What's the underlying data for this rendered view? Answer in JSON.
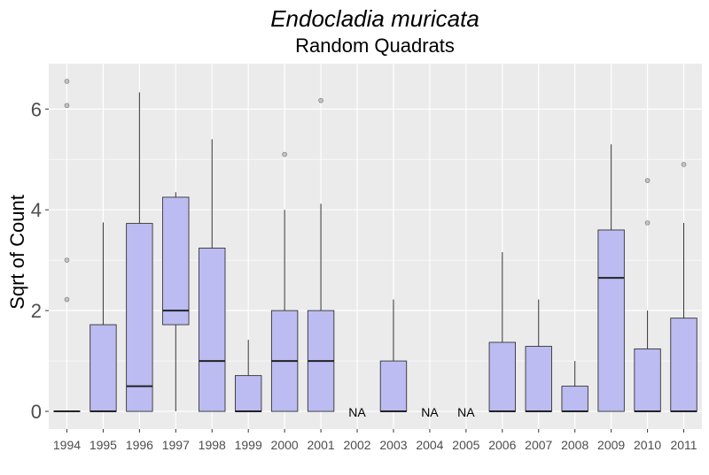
{
  "chart_data": {
    "type": "box",
    "title": "Endocladia muricata",
    "subtitle": "Random Quadrats",
    "xlabel": "",
    "ylabel": "Sqrt of Count",
    "ylim": [
      -0.35,
      6.9
    ],
    "yticks": [
      0,
      2,
      4,
      6
    ],
    "grid": true,
    "colors": {
      "box_fill": "#bcbcf2",
      "box_stroke": "#333333",
      "panel": "#ebebeb",
      "grid": "#ffffff",
      "outlier": "#999999"
    },
    "na_label": "NA",
    "boxes": [
      {
        "year": "1994",
        "min": 0,
        "q1": 0,
        "median": 0,
        "q3": 0,
        "max": 0,
        "outliers": [
          6.55,
          6.07,
          3.0,
          2.22
        ]
      },
      {
        "year": "1995",
        "min": 0,
        "q1": 0,
        "median": 0,
        "q3": 1.72,
        "max": 3.75,
        "outliers": []
      },
      {
        "year": "1996",
        "min": 0,
        "q1": 0,
        "median": 0.5,
        "q3": 3.73,
        "max": 6.33,
        "outliers": []
      },
      {
        "year": "1997",
        "min": 0,
        "q1": 1.72,
        "median": 2.0,
        "q3": 4.25,
        "max": 4.35,
        "outliers": []
      },
      {
        "year": "1998",
        "min": 0,
        "q1": 0,
        "median": 1.0,
        "q3": 3.24,
        "max": 5.4,
        "outliers": []
      },
      {
        "year": "1999",
        "min": 0,
        "q1": 0,
        "median": 0,
        "q3": 0.71,
        "max": 1.42,
        "outliers": []
      },
      {
        "year": "2000",
        "min": 0,
        "q1": 0,
        "median": 1.0,
        "q3": 2.0,
        "max": 4.0,
        "outliers": [
          5.1
        ]
      },
      {
        "year": "2001",
        "min": 0,
        "q1": 0,
        "median": 1.0,
        "q3": 2.0,
        "max": 4.12,
        "outliers": [
          6.17
        ]
      },
      {
        "year": "2002",
        "na": true
      },
      {
        "year": "2003",
        "min": 0,
        "q1": 0,
        "median": 0,
        "q3": 1.0,
        "max": 2.22,
        "outliers": []
      },
      {
        "year": "2004",
        "na": true
      },
      {
        "year": "2005",
        "na": true
      },
      {
        "year": "2006",
        "min": 0,
        "q1": 0,
        "median": 0,
        "q3": 1.37,
        "max": 3.16,
        "outliers": []
      },
      {
        "year": "2007",
        "min": 0,
        "q1": 0,
        "median": 0,
        "q3": 1.29,
        "max": 2.22,
        "outliers": []
      },
      {
        "year": "2008",
        "min": 0,
        "q1": 0,
        "median": 0,
        "q3": 0.5,
        "max": 1.0,
        "outliers": []
      },
      {
        "year": "2009",
        "min": 0,
        "q1": 0,
        "median": 2.65,
        "q3": 3.6,
        "max": 5.3,
        "outliers": []
      },
      {
        "year": "2010",
        "min": 0,
        "q1": 0,
        "median": 0,
        "q3": 1.24,
        "max": 2.0,
        "outliers": [
          4.58,
          3.74
        ]
      },
      {
        "year": "2011",
        "min": 0,
        "q1": 0,
        "median": 0,
        "q3": 1.85,
        "max": 3.74,
        "outliers": [
          4.9
        ]
      }
    ]
  }
}
